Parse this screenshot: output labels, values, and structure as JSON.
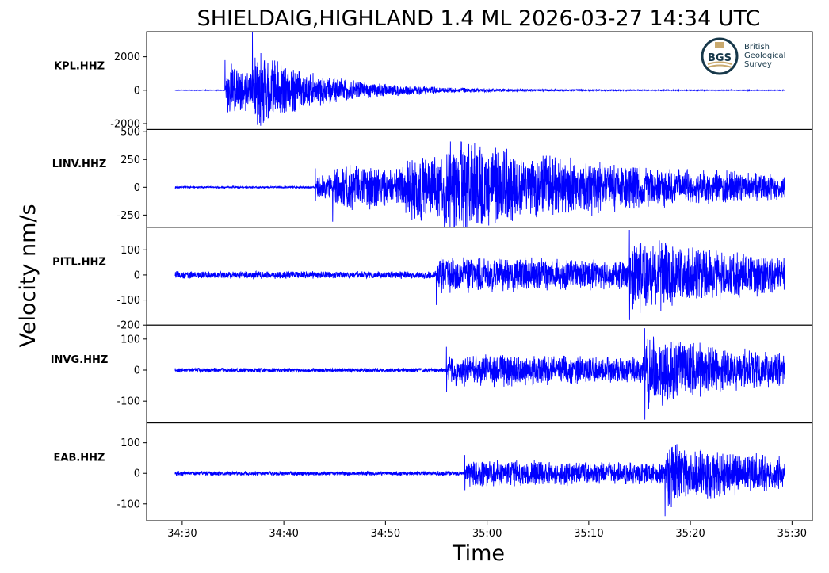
{
  "chart_data": {
    "type": "line",
    "title": "SHIELDAIG,HIGHLAND 1.4 ML   2026-03-27 14:34 UTC",
    "xlabel": "Time",
    "ylabel": "Velocity nm/s",
    "x_ticks": [
      "34:30",
      "34:40",
      "34:50",
      "35:00",
      "35:10",
      "35:20",
      "35:30"
    ],
    "xlim": [
      "34:26.5",
      "35:32"
    ],
    "data_start": "34:29.3",
    "data_end": "35:29.3",
    "series_color": "#0000ff",
    "logo": {
      "abbr": "BGS",
      "lines": [
        "British",
        "Geological",
        "Survey"
      ],
      "ring_color": "#17384a",
      "accent_color": "#c9a96e"
    },
    "series": [
      {
        "name": "KPL.HHZ",
        "ylim": [
          -2350,
          3500
        ],
        "yticks": [
          2000,
          0,
          -2000
        ],
        "tick_labels": [
          "2000",
          "0",
          "-2000"
        ],
        "noise": 15,
        "events": [
          {
            "t": "34:34.2",
            "peak_pos": 1800,
            "peak_neg": -2200,
            "amp": 1100,
            "decay": 8
          },
          {
            "t": "34:36.9",
            "peak_pos": 3500,
            "peak_neg": -2000,
            "amp": 900,
            "decay": 6
          }
        ]
      },
      {
        "name": "LINV.HHZ",
        "ylim": [
          -360,
          520
        ],
        "yticks": [
          500,
          250,
          0,
          -250
        ],
        "tick_labels": [
          "500",
          "250",
          "0",
          "-250"
        ],
        "noise": 6,
        "events": [
          {
            "t": "34:43.1",
            "peak_pos": 170,
            "peak_neg": -120,
            "amp": 70,
            "decay": 30
          },
          {
            "t": "34:44.8",
            "peak_pos": 500,
            "peak_neg": -310,
            "amp": 70,
            "decay": 30
          },
          {
            "t": "34:52.0",
            "peak_pos": 290,
            "peak_neg": -230,
            "amp": 110,
            "decay": 22
          },
          {
            "t": "34:55.5",
            "peak_pos": 250,
            "peak_neg": -330,
            "amp": 110,
            "decay": 20
          }
        ]
      },
      {
        "name": "PITL.HHZ",
        "ylim": [
          -200,
          190
        ],
        "yticks": [
          100,
          0,
          -100,
          -200
        ],
        "tick_labels": [
          "100",
          "0",
          "-100",
          "-200"
        ],
        "noise": 10,
        "events": [
          {
            "t": "34:55.0",
            "peak_pos": 150,
            "peak_neg": -120,
            "amp": 42,
            "decay": 60
          },
          {
            "t": "35:14.0",
            "peak_pos": 180,
            "peak_neg": -180,
            "amp": 70,
            "decay": 10
          }
        ]
      },
      {
        "name": "INVG.HHZ",
        "ylim": [
          -170,
          145
        ],
        "yticks": [
          100,
          0,
          -100
        ],
        "tick_labels": [
          "100",
          "0",
          "-100"
        ],
        "noise": 5,
        "events": [
          {
            "t": "34:56.0",
            "peak_pos": 75,
            "peak_neg": -70,
            "amp": 32,
            "decay": 60
          },
          {
            "t": "35:15.5",
            "peak_pos": 135,
            "peak_neg": -160,
            "amp": 55,
            "decay": 10
          }
        ]
      },
      {
        "name": "EAB.HHZ",
        "ylim": [
          -155,
          165
        ],
        "yticks": [
          100,
          0,
          -100
        ],
        "tick_labels": [
          "100",
          "0",
          "-100"
        ],
        "noise": 5,
        "events": [
          {
            "t": "34:57.8",
            "peak_pos": 60,
            "peak_neg": -55,
            "amp": 25,
            "decay": 60
          },
          {
            "t": "35:17.5",
            "peak_pos": 150,
            "peak_neg": -140,
            "amp": 55,
            "decay": 10
          }
        ]
      }
    ]
  }
}
